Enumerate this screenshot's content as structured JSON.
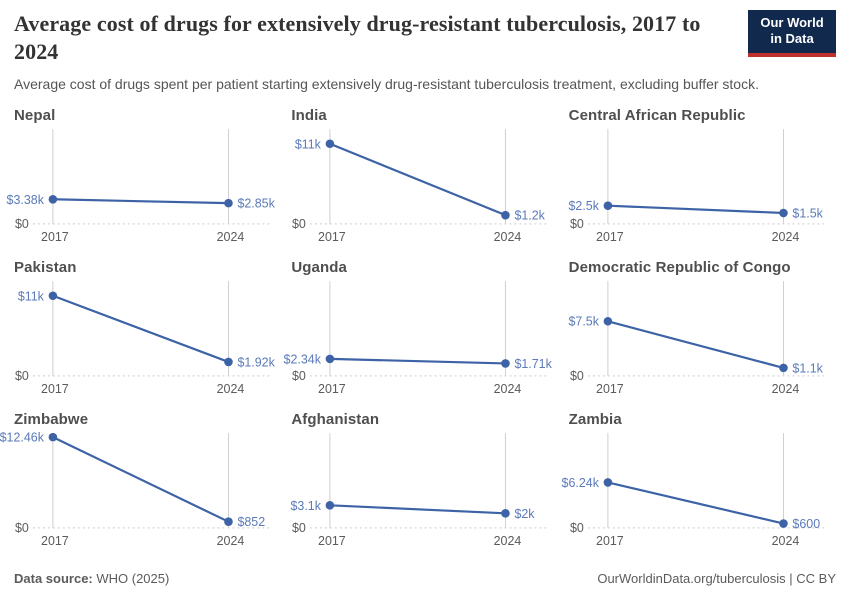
{
  "header": {
    "title": "Average cost of drugs for extensively drug-resistant tuberculosis, 2017 to 2024",
    "subtitle": "Average cost of drugs spent per patient starting extensively drug-resistant tuberculosis treatment, excluding buffer stock.",
    "logo_line1": "Our World",
    "logo_line2": "in Data"
  },
  "footer": {
    "datasource_label": "Data source:",
    "datasource_value": " WHO (2025)",
    "attribution": "OurWorldinData.org/tuberculosis | CC BY"
  },
  "colors": {
    "line": "#3d63a6",
    "value_label": "#5b7ab8",
    "tick_label": "#5b5b5b",
    "gridline": "#cfcfcf",
    "baseline": "#d6d6d6",
    "panel_title": "#4f4f4f",
    "title_text": "#333333",
    "subtitle_text": "#555555",
    "footer_text": "#5b5b5b",
    "logo_bg": "#12294e",
    "logo_stripe": "#c0312b"
  },
  "chart_data": {
    "type": "line",
    "title": "Average cost of drugs for extensively drug-resistant tuberculosis, 2017 to 2024",
    "x": [
      2017,
      2024
    ],
    "y_zero_label": "$0",
    "ylim": [
      0,
      12460
    ],
    "grid": "dotted zero baseline, vertical year gridlines",
    "legend_position": "none",
    "panels": [
      {
        "title": "Nepal",
        "values": [
          3380,
          2850
        ],
        "value_labels": [
          "$3.38k",
          "$2.85k"
        ]
      },
      {
        "title": "India",
        "values": [
          11000,
          1200
        ],
        "value_labels": [
          "$11k",
          "$1.2k"
        ]
      },
      {
        "title": "Central African Republic",
        "values": [
          2500,
          1500
        ],
        "value_labels": [
          "$2.5k",
          "$1.5k"
        ]
      },
      {
        "title": "Pakistan",
        "values": [
          11000,
          1920
        ],
        "value_labels": [
          "$11k",
          "$1.92k"
        ]
      },
      {
        "title": "Uganda",
        "values": [
          2340,
          1710
        ],
        "value_labels": [
          "$2.34k",
          "$1.71k"
        ]
      },
      {
        "title": "Democratic Republic of Congo",
        "values": [
          7500,
          1100
        ],
        "value_labels": [
          "$7.5k",
          "$1.1k"
        ]
      },
      {
        "title": "Zimbabwe",
        "values": [
          12460,
          852
        ],
        "value_labels": [
          "$12.46k",
          "$852"
        ]
      },
      {
        "title": "Afghanistan",
        "values": [
          3100,
          2000
        ],
        "value_labels": [
          "$3.1k",
          "$2k"
        ]
      },
      {
        "title": "Zambia",
        "values": [
          6240,
          600
        ],
        "value_labels": [
          "$6.24k",
          "$600"
        ]
      }
    ]
  }
}
